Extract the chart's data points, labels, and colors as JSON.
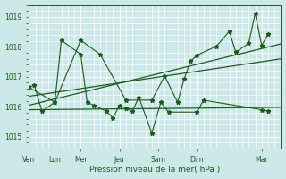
{
  "xlabel": "Pression niveau de la mer( hPa )",
  "bg_color": "#cce8e8",
  "grid_color": "#ffffff",
  "line_color": "#1a5c1a",
  "ylim": [
    1014.6,
    1019.4
  ],
  "yticks": [
    1015,
    1016,
    1017,
    1018,
    1019
  ],
  "x_day_labels": [
    "Ven",
    "Lun",
    "Mer",
    "Jeu",
    "Sam",
    "Dim",
    "Mar"
  ],
  "x_day_positions": [
    0,
    2,
    4,
    7,
    10,
    13,
    18
  ],
  "xlim": [
    0,
    19.5
  ],
  "series1_x": [
    0.0,
    0.4,
    1.0,
    2.0,
    2.5,
    4.0,
    4.5,
    5.0,
    6.0,
    6.5,
    7.0,
    7.5,
    8.0,
    8.5,
    9.5,
    10.2,
    10.8,
    13.0,
    13.5,
    18.0,
    18.5
  ],
  "series1_y": [
    1016.65,
    1016.73,
    1015.85,
    1016.15,
    1018.22,
    1017.75,
    1016.15,
    1016.05,
    1015.85,
    1015.62,
    1016.05,
    1015.95,
    1015.85,
    1016.32,
    1015.12,
    1016.15,
    1015.82,
    1015.82,
    1016.22,
    1015.9,
    1015.85
  ],
  "series2_x": [
    0.0,
    2.0,
    4.0,
    5.5,
    7.5,
    9.5,
    10.5,
    11.5,
    12.0,
    12.5,
    13.0,
    14.5,
    15.5,
    16.0,
    17.0,
    17.5,
    18.0,
    18.5
  ],
  "series2_y": [
    1016.65,
    1016.15,
    1018.22,
    1017.75,
    1016.22,
    1016.22,
    1017.02,
    1016.15,
    1016.92,
    1017.52,
    1017.72,
    1018.02,
    1018.52,
    1017.82,
    1018.12,
    1019.12,
    1018.05,
    1018.42
  ],
  "trend1_x": [
    0,
    19.5
  ],
  "trend1_y": [
    1015.9,
    1015.98
  ],
  "trend2_x": [
    0,
    19.5
  ],
  "trend2_y": [
    1016.05,
    1018.1
  ],
  "trend3_x": [
    0,
    19.5
  ],
  "trend3_y": [
    1016.35,
    1017.6
  ]
}
